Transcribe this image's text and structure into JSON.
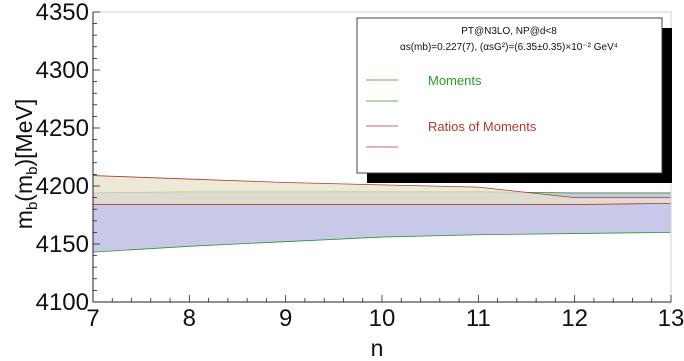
{
  "chart_data": {
    "type": "area",
    "xlabel": "n",
    "ylabel_main": "m",
    "ylabel_sub1": "b",
    "ylabel_mid": "(m",
    "ylabel_sub2": "b",
    "ylabel_end": ")[MeV]",
    "xlim": [
      7,
      13
    ],
    "ylim": [
      4100,
      4350
    ],
    "x_ticks": [
      "7",
      "8",
      "9",
      "10",
      "11",
      "12",
      "13"
    ],
    "y_ticks": [
      "4100",
      "4150",
      "4200",
      "4250",
      "4300",
      "4350"
    ],
    "x": [
      7,
      8,
      9,
      10,
      11,
      12,
      13
    ],
    "series": [
      {
        "name": "Moments",
        "color": "#2a9a2a",
        "fill": "#c8c8e8",
        "upper": [
          4194,
          4195,
          4195,
          4195,
          4195,
          4194,
          4194
        ],
        "lower": [
          4143,
          4148,
          4152,
          4156,
          4158,
          4159,
          4160
        ]
      },
      {
        "name": "Ratios of Moments",
        "color": "#b03a2a",
        "fill": "#e8e2c8",
        "upper": [
          4209,
          4206,
          4203,
          4201,
          4199,
          4190,
          4190
        ],
        "lower": [
          4184,
          4184,
          4184,
          4184,
          4184,
          4184,
          4185
        ]
      }
    ],
    "legend": {
      "placement": "top-right",
      "line1": "PT@N3LO, NP@d<8",
      "line2": "αs(mb)=0.227(7), (αsG²)=(6.35±0.35)×10⁻² GeV⁴",
      "items": [
        "Moments",
        "Ratios of Moments"
      ]
    },
    "grid": false
  }
}
